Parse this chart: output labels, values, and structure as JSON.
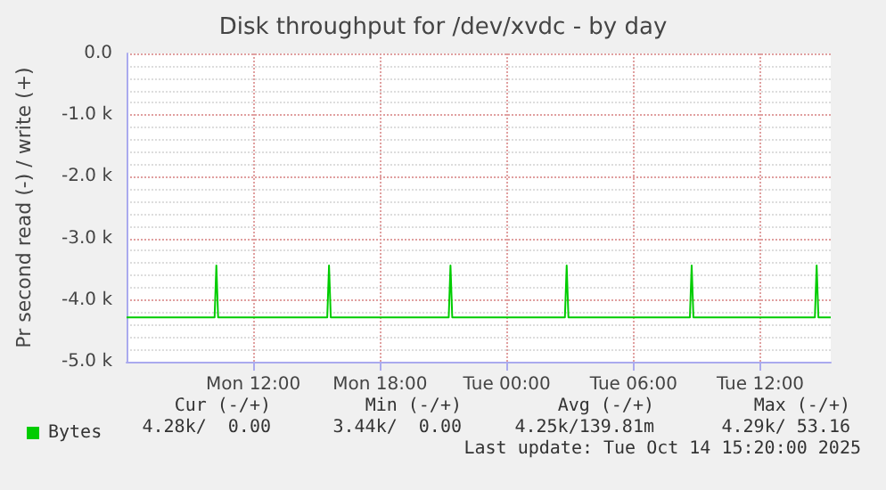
{
  "chart_data": {
    "type": "line",
    "title": "Disk throughput for /dev/xvdc - by day",
    "ylabel": "Pr second read (-) / write (+)",
    "x": [
      "2025-10-13T06:00",
      "2025-10-13T10:10",
      "2025-10-13T10:15",
      "2025-10-13T10:20",
      "2025-10-13T15:30",
      "2025-10-13T15:35",
      "2025-10-13T15:40",
      "2025-10-13T21:15",
      "2025-10-13T21:20",
      "2025-10-13T21:25",
      "2025-10-14T02:45",
      "2025-10-14T02:50",
      "2025-10-14T02:55",
      "2025-10-14T08:40",
      "2025-10-14T08:45",
      "2025-10-14T08:50",
      "2025-10-14T14:35",
      "2025-10-14T14:40",
      "2025-10-14T14:45",
      "2025-10-14T15:20"
    ],
    "series": [
      {
        "name": "Bytes",
        "color": "#00cc00",
        "values": [
          -4280,
          -4280,
          -3440,
          -4280,
          -4280,
          -3440,
          -4280,
          -4280,
          -3440,
          -4280,
          -4280,
          -3440,
          -4280,
          -4280,
          -3440,
          -4280,
          -4280,
          -3440,
          -4280,
          -4280
        ]
      }
    ],
    "xlim": [
      "2025-10-13T06:00",
      "2025-10-14T15:20"
    ],
    "xticks": [
      {
        "value": "2025-10-13T12:00",
        "label": "Mon 12:00"
      },
      {
        "value": "2025-10-13T18:00",
        "label": "Mon 18:00"
      },
      {
        "value": "2025-10-14T00:00",
        "label": "Tue 00:00"
      },
      {
        "value": "2025-10-14T06:00",
        "label": "Tue 06:00"
      },
      {
        "value": "2025-10-14T12:00",
        "label": "Tue 12:00"
      }
    ],
    "ylim": [
      -5000,
      0
    ],
    "yticks": [
      {
        "value": -5000,
        "label": "-5.0 k"
      },
      {
        "value": -4000,
        "label": "-4.0 k"
      },
      {
        "value": -3000,
        "label": "-3.0 k"
      },
      {
        "value": -2000,
        "label": "-2.0 k"
      },
      {
        "value": -1000,
        "label": "-1.0 k"
      },
      {
        "value": 0,
        "label": "0.0"
      }
    ],
    "grid": true,
    "legend": "bottom left",
    "marker": "none",
    "line_style": "solid",
    "annotations": [
      "Cur (-/+)",
      "Min (-/+)",
      "Avg (-/+)",
      "Max (-/+)",
      "4.28k/  0.00",
      "3.44k/  0.00",
      "4.25k/139.81m",
      "4.29k/ 53.16",
      "Last update: Tue Oct 14 15:20:00 2025"
    ]
  }
}
